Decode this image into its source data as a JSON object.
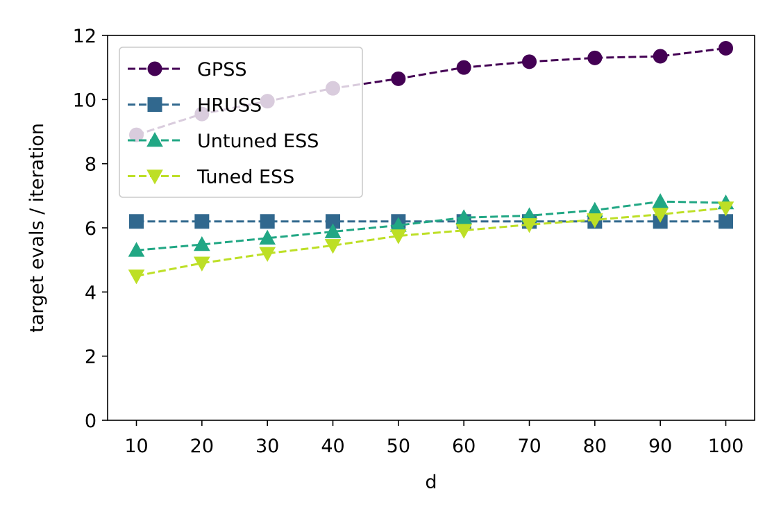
{
  "chart_data": {
    "type": "line",
    "title": "",
    "xlabel": "d",
    "ylabel": "target evals / iteration",
    "x": [
      10,
      20,
      30,
      40,
      50,
      60,
      70,
      80,
      90,
      100
    ],
    "x_ticks": [
      "10",
      "20",
      "30",
      "40",
      "50",
      "60",
      "70",
      "80",
      "90",
      "100"
    ],
    "y_ticks": [
      "0",
      "2",
      "4",
      "6",
      "8",
      "10",
      "12"
    ],
    "ylim": [
      0,
      12
    ],
    "grid": false,
    "legend_position": "upper-left",
    "series": [
      {
        "name": "GPSS",
        "marker": "circle",
        "color": "#440154",
        "values": [
          8.9,
          9.55,
          9.95,
          10.35,
          10.65,
          11.0,
          11.18,
          11.3,
          11.35,
          11.6
        ]
      },
      {
        "name": "HRUSS",
        "marker": "square",
        "color": "#31688e",
        "values": [
          6.2,
          6.2,
          6.2,
          6.2,
          6.2,
          6.2,
          6.2,
          6.2,
          6.2,
          6.2
        ]
      },
      {
        "name": "Untuned ESS",
        "marker": "triangle-up",
        "color": "#21a784",
        "values": [
          5.3,
          5.48,
          5.68,
          5.88,
          6.08,
          6.32,
          6.38,
          6.55,
          6.82,
          6.78
        ]
      },
      {
        "name": "Tuned ESS",
        "marker": "triangle-down",
        "color": "#bddf26",
        "values": [
          4.5,
          4.9,
          5.2,
          5.45,
          5.75,
          5.92,
          6.1,
          6.25,
          6.42,
          6.62
        ]
      }
    ]
  }
}
